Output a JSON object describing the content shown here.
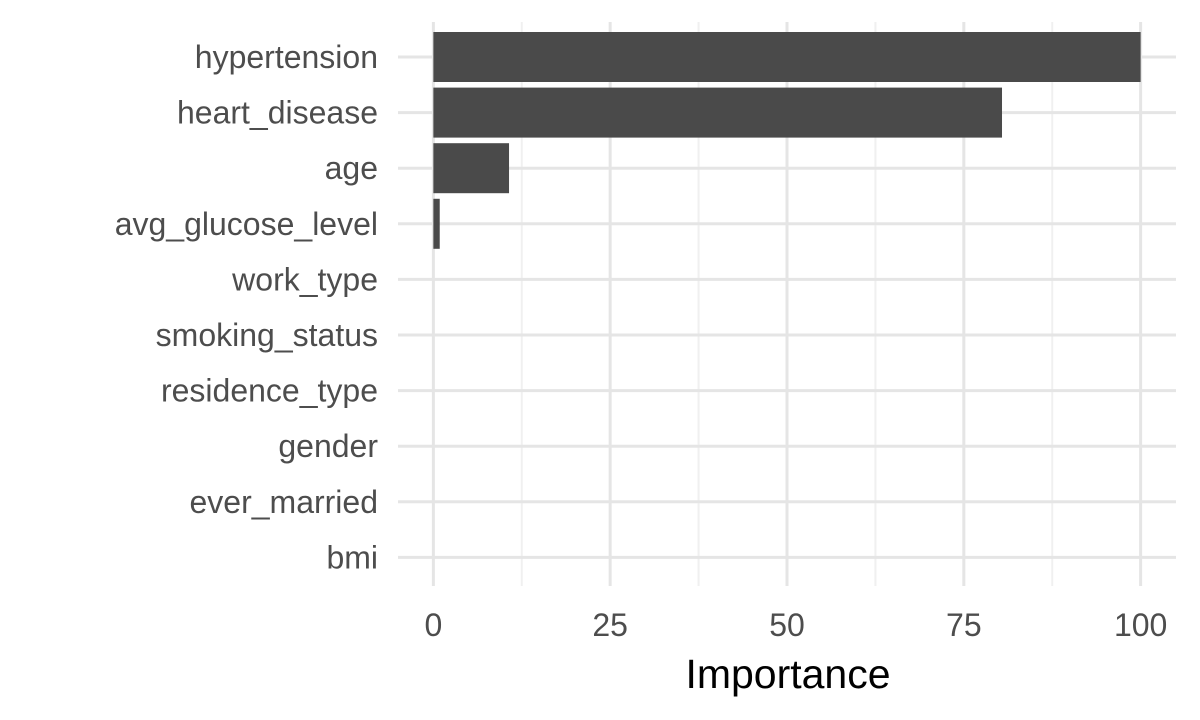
{
  "chart_data": {
    "type": "bar",
    "orientation": "horizontal",
    "title": "",
    "xlabel": "Importance",
    "ylabel": "",
    "categories": [
      "hypertension",
      "heart_disease",
      "age",
      "avg_glucose_level",
      "work_type",
      "smoking_status",
      "residence_type",
      "gender",
      "ever_married",
      "bmi"
    ],
    "values": [
      100,
      80.4,
      10.7,
      0.9,
      0,
      0,
      0,
      0,
      0,
      0
    ],
    "xlim": [
      -5,
      105
    ],
    "x_ticks": [
      0,
      25,
      50,
      75,
      100
    ],
    "x_tick_labels": [
      "0",
      "25",
      "50",
      "75",
      "100"
    ],
    "grid": true,
    "legend": "none",
    "colors": {
      "bar": "#4a4a4a",
      "grid_major": "#e5e5e5",
      "grid_minor": "#f0f0f0",
      "tick_text": "#4d4d4d",
      "title_text": "#000000"
    }
  }
}
